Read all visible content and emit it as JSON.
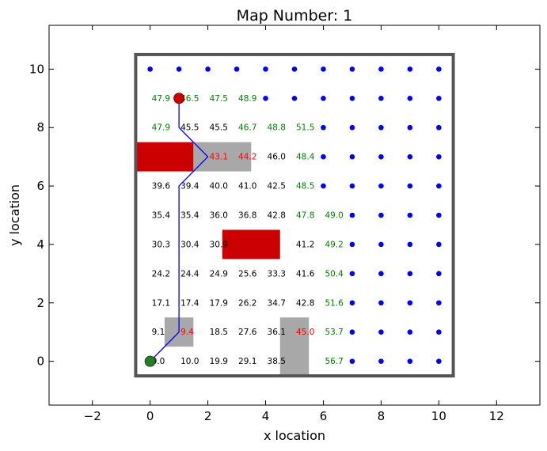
{
  "chart_data": {
    "type": "scatter",
    "title": "Map Number: 1",
    "xlabel": "x location",
    "ylabel": "y location",
    "xlim": [
      -3.5,
      13.5
    ],
    "ylim": [
      -1.5,
      11.5
    ],
    "xticks": [
      -2,
      0,
      2,
      4,
      6,
      8,
      10,
      12
    ],
    "xtick_labels": [
      "−2",
      "0",
      "2",
      "4",
      "6",
      "8",
      "10",
      "12"
    ],
    "yticks": [
      0,
      2,
      4,
      6,
      8,
      10
    ],
    "ytick_labels": [
      "0",
      "2",
      "4",
      "6",
      "8",
      "10"
    ],
    "grid": false,
    "colors": {
      "border": "#555555",
      "obstacle_red": "#cc0000",
      "obstacle_gray": "#a8a8a8",
      "dot": "#0000ff",
      "path": "#0000ff",
      "start": "#2a7a2a",
      "goal": "#cc0000",
      "text_black": "#000000",
      "text_green": "#008000",
      "text_red": "#ff0000"
    },
    "boundary": {
      "x": [
        -0.5,
        10.5
      ],
      "y": [
        -0.5,
        10.5
      ]
    },
    "obstacles": [
      {
        "color": "red",
        "x": [
          -0.5,
          1.5
        ],
        "y": [
          6.5,
          7.5
        ]
      },
      {
        "color": "gray",
        "x": [
          1.5,
          3.5
        ],
        "y": [
          6.5,
          7.5
        ]
      },
      {
        "color": "red",
        "x": [
          2.5,
          4.5
        ],
        "y": [
          3.5,
          4.5
        ]
      },
      {
        "color": "gray",
        "x": [
          0.5,
          1.5
        ],
        "y": [
          0.5,
          1.5
        ]
      },
      {
        "color": "gray",
        "x": [
          4.5,
          5.5
        ],
        "y": [
          -0.5,
          1.5
        ]
      }
    ],
    "unvisited_points": [
      [
        0,
        10
      ],
      [
        1,
        10
      ],
      [
        2,
        10
      ],
      [
        3,
        10
      ],
      [
        4,
        10
      ],
      [
        5,
        10
      ],
      [
        6,
        10
      ],
      [
        7,
        10
      ],
      [
        8,
        10
      ],
      [
        9,
        10
      ],
      [
        10,
        10
      ],
      [
        4,
        9
      ],
      [
        5,
        9
      ],
      [
        6,
        9
      ],
      [
        7,
        9
      ],
      [
        8,
        9
      ],
      [
        9,
        9
      ],
      [
        10,
        9
      ],
      [
        6,
        8
      ],
      [
        7,
        8
      ],
      [
        8,
        8
      ],
      [
        9,
        8
      ],
      [
        10,
        8
      ],
      [
        6,
        7
      ],
      [
        7,
        7
      ],
      [
        8,
        7
      ],
      [
        9,
        7
      ],
      [
        10,
        7
      ],
      [
        6,
        6
      ],
      [
        7,
        6
      ],
      [
        8,
        6
      ],
      [
        9,
        6
      ],
      [
        10,
        6
      ],
      [
        7,
        5
      ],
      [
        8,
        5
      ],
      [
        9,
        5
      ],
      [
        10,
        5
      ],
      [
        7,
        4
      ],
      [
        8,
        4
      ],
      [
        9,
        4
      ],
      [
        10,
        4
      ],
      [
        7,
        3
      ],
      [
        8,
        3
      ],
      [
        9,
        3
      ],
      [
        10,
        3
      ],
      [
        7,
        2
      ],
      [
        8,
        2
      ],
      [
        9,
        2
      ],
      [
        10,
        2
      ],
      [
        7,
        1
      ],
      [
        8,
        1
      ],
      [
        9,
        1
      ],
      [
        10,
        1
      ],
      [
        7,
        0
      ],
      [
        8,
        0
      ],
      [
        9,
        0
      ],
      [
        10,
        0
      ]
    ],
    "cost_labels": [
      {
        "x": 0,
        "y": 9,
        "text": "47.9",
        "color": "green"
      },
      {
        "x": 1,
        "y": 9,
        "text": "46.5",
        "color": "green"
      },
      {
        "x": 2,
        "y": 9,
        "text": "47.5",
        "color": "green"
      },
      {
        "x": 3,
        "y": 9,
        "text": "48.9",
        "color": "green"
      },
      {
        "x": 0,
        "y": 8,
        "text": "47.9",
        "color": "green"
      },
      {
        "x": 1,
        "y": 8,
        "text": "45.5",
        "color": "black"
      },
      {
        "x": 2,
        "y": 8,
        "text": "45.5",
        "color": "black"
      },
      {
        "x": 3,
        "y": 8,
        "text": "46.7",
        "color": "green"
      },
      {
        "x": 4,
        "y": 8,
        "text": "48.8",
        "color": "green"
      },
      {
        "x": 5,
        "y": 8,
        "text": "51.5",
        "color": "green"
      },
      {
        "x": 2,
        "y": 7,
        "text": "43.1",
        "color": "red"
      },
      {
        "x": 3,
        "y": 7,
        "text": "44.2",
        "color": "red"
      },
      {
        "x": 4,
        "y": 7,
        "text": "46.0",
        "color": "black"
      },
      {
        "x": 5,
        "y": 7,
        "text": "48.4",
        "color": "green"
      },
      {
        "x": 0,
        "y": 6,
        "text": "39.6",
        "color": "black"
      },
      {
        "x": 1,
        "y": 6,
        "text": "39.4",
        "color": "black"
      },
      {
        "x": 2,
        "y": 6,
        "text": "40.0",
        "color": "black"
      },
      {
        "x": 3,
        "y": 6,
        "text": "41.0",
        "color": "black"
      },
      {
        "x": 4,
        "y": 6,
        "text": "42.5",
        "color": "black"
      },
      {
        "x": 5,
        "y": 6,
        "text": "48.5",
        "color": "green"
      },
      {
        "x": 0,
        "y": 5,
        "text": "35.4",
        "color": "black"
      },
      {
        "x": 1,
        "y": 5,
        "text": "35.4",
        "color": "black"
      },
      {
        "x": 2,
        "y": 5,
        "text": "36.0",
        "color": "black"
      },
      {
        "x": 3,
        "y": 5,
        "text": "36.8",
        "color": "black"
      },
      {
        "x": 4,
        "y": 5,
        "text": "42.8",
        "color": "black"
      },
      {
        "x": 5,
        "y": 5,
        "text": "47.8",
        "color": "green"
      },
      {
        "x": 6,
        "y": 5,
        "text": "49.0",
        "color": "green"
      },
      {
        "x": 0,
        "y": 4,
        "text": "30.3",
        "color": "black"
      },
      {
        "x": 1,
        "y": 4,
        "text": "30.4",
        "color": "black"
      },
      {
        "x": 2,
        "y": 4,
        "text": "30.9",
        "color": "black"
      },
      {
        "x": 5,
        "y": 4,
        "text": "41.2",
        "color": "black"
      },
      {
        "x": 6,
        "y": 4,
        "text": "49.2",
        "color": "green"
      },
      {
        "x": 0,
        "y": 3,
        "text": "24.2",
        "color": "black"
      },
      {
        "x": 1,
        "y": 3,
        "text": "24.4",
        "color": "black"
      },
      {
        "x": 2,
        "y": 3,
        "text": "24.9",
        "color": "black"
      },
      {
        "x": 3,
        "y": 3,
        "text": "25.6",
        "color": "black"
      },
      {
        "x": 4,
        "y": 3,
        "text": "33.3",
        "color": "black"
      },
      {
        "x": 5,
        "y": 3,
        "text": "41.6",
        "color": "black"
      },
      {
        "x": 6,
        "y": 3,
        "text": "50.4",
        "color": "green"
      },
      {
        "x": 0,
        "y": 2,
        "text": "17.1",
        "color": "black"
      },
      {
        "x": 1,
        "y": 2,
        "text": "17.4",
        "color": "black"
      },
      {
        "x": 2,
        "y": 2,
        "text": "17.9",
        "color": "black"
      },
      {
        "x": 3,
        "y": 2,
        "text": "26.2",
        "color": "black"
      },
      {
        "x": 4,
        "y": 2,
        "text": "34.7",
        "color": "black"
      },
      {
        "x": 5,
        "y": 2,
        "text": "42.8",
        "color": "black"
      },
      {
        "x": 6,
        "y": 2,
        "text": "51.6",
        "color": "green"
      },
      {
        "x": 0,
        "y": 1,
        "text": "9.1",
        "color": "black"
      },
      {
        "x": 1,
        "y": 1,
        "text": "9.4",
        "color": "red"
      },
      {
        "x": 2,
        "y": 1,
        "text": "18.5",
        "color": "black"
      },
      {
        "x": 3,
        "y": 1,
        "text": "27.6",
        "color": "black"
      },
      {
        "x": 4,
        "y": 1,
        "text": "36.1",
        "color": "black"
      },
      {
        "x": 5,
        "y": 1,
        "text": "45.0",
        "color": "red"
      },
      {
        "x": 6,
        "y": 1,
        "text": "53.7",
        "color": "green"
      },
      {
        "x": 0,
        "y": 0,
        "text": "0.0",
        "color": "black"
      },
      {
        "x": 1,
        "y": 0,
        "text": "10.0",
        "color": "black"
      },
      {
        "x": 2,
        "y": 0,
        "text": "19.9",
        "color": "black"
      },
      {
        "x": 3,
        "y": 0,
        "text": "29.1",
        "color": "black"
      },
      {
        "x": 4,
        "y": 0,
        "text": "38.5",
        "color": "black"
      },
      {
        "x": 6,
        "y": 0,
        "text": "56.7",
        "color": "green"
      }
    ],
    "path": [
      [
        0,
        0
      ],
      [
        1,
        1
      ],
      [
        1,
        6
      ],
      [
        2,
        7
      ],
      [
        1,
        8
      ],
      [
        1,
        9
      ]
    ],
    "start": [
      0,
      0
    ],
    "goal": [
      1,
      9
    ]
  }
}
